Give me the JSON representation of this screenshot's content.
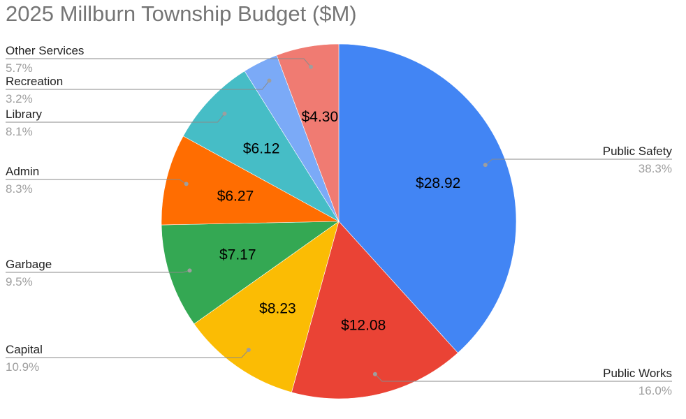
{
  "chart_data": {
    "type": "pie",
    "title": "2025 Millburn Township Budget ($M)",
    "slices": [
      {
        "label": "Public Safety",
        "value": 28.92,
        "value_label": "$28.92",
        "percent": "38.3%",
        "color": "#4285f4",
        "side": "right"
      },
      {
        "label": "Public Works",
        "value": 12.08,
        "value_label": "$12.08",
        "percent": "16.0%",
        "color": "#ea4335",
        "side": "right"
      },
      {
        "label": "Capital",
        "value": 8.23,
        "value_label": "$8.23",
        "percent": "10.9%",
        "color": "#fbbc04",
        "side": "left"
      },
      {
        "label": "Garbage",
        "value": 7.17,
        "value_label": "$7.17",
        "percent": "9.5%",
        "color": "#34a853",
        "side": "left"
      },
      {
        "label": "Admin",
        "value": 6.27,
        "value_label": "$6.27",
        "percent": "8.3%",
        "color": "#ff6d01",
        "side": "left"
      },
      {
        "label": "Library",
        "value": 6.12,
        "value_label": "$6.12",
        "percent": "8.1%",
        "color": "#46bdc6",
        "side": "left"
      },
      {
        "label": "Recreation",
        "value": 2.43,
        "value_label": "",
        "percent": "3.2%",
        "color": "#7baaf7",
        "side": "left"
      },
      {
        "label": "Other Services",
        "value": 4.3,
        "value_label": "$4.30",
        "percent": "5.7%",
        "color": "#f07b72",
        "side": "left"
      }
    ]
  }
}
